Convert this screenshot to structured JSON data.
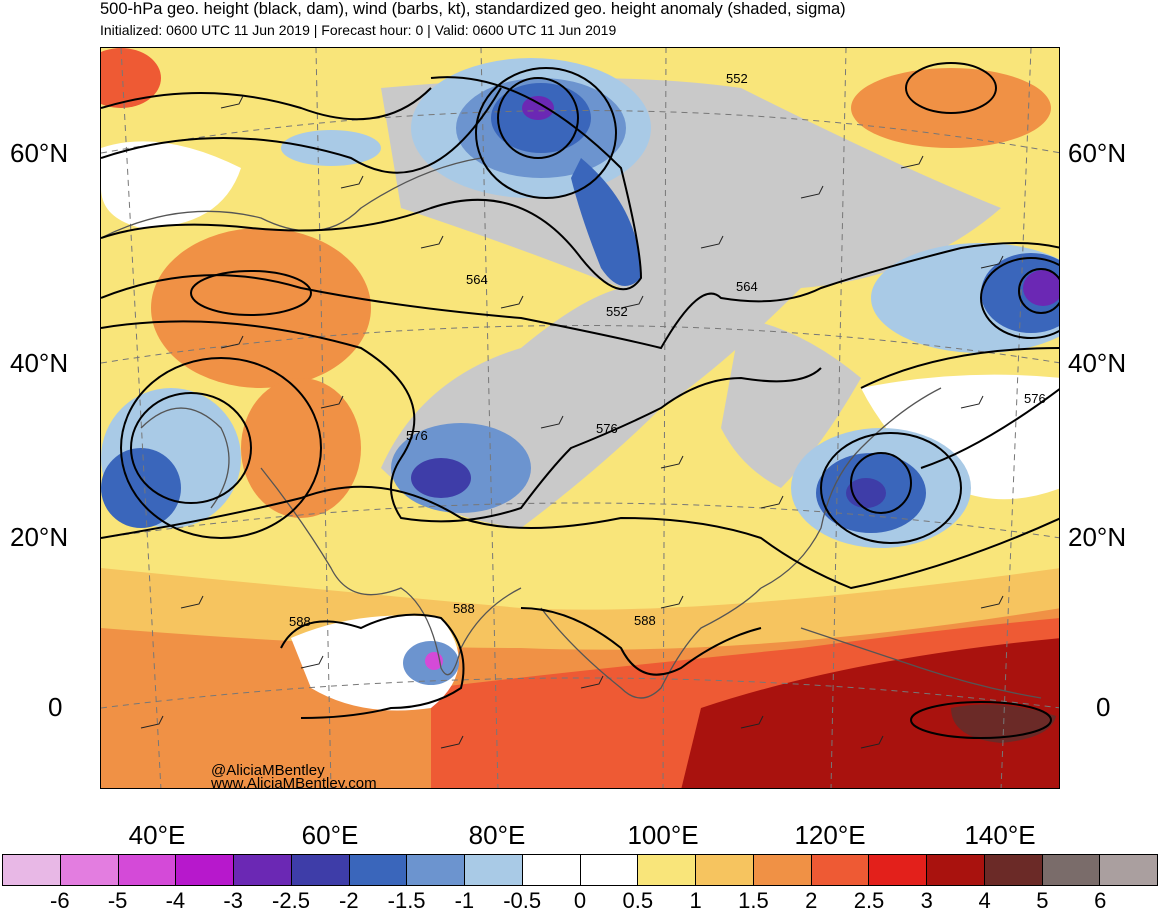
{
  "title": "500-hPa geo. height (black, dam), wind (barbs, kt), standardized geo. height anomaly (shaded, sigma)",
  "subtitle": "Initialized: 0600 UTC 11 Jun 2019 | Forecast hour: 0 | Valid: 0600 UTC 11 Jun 2019",
  "lat_labels": [
    "60°N",
    "40°N",
    "20°N",
    "0"
  ],
  "lon_labels": [
    "40°E",
    "60°E",
    "80°E",
    "100°E",
    "120°E",
    "140°E"
  ],
  "contour_labels": [
    "552",
    "564",
    "552",
    "564",
    "576",
    "576",
    "576",
    "588",
    "588",
    "588"
  ],
  "credit": {
    "handle": "@AliciaMBentley",
    "site": "www.AliciaMBentley.com"
  },
  "colorbar": {
    "labels": [
      "-6",
      "-5",
      "-4",
      "-3",
      "-2.5",
      "-2",
      "-1.5",
      "-1",
      "-0.5",
      "0",
      "0.5",
      "1",
      "1.5",
      "2",
      "2.5",
      "3",
      "4",
      "5",
      "6"
    ],
    "colors": [
      "#e8b8e6",
      "#e37de0",
      "#d44ad8",
      "#b718cc",
      "#6b28b4",
      "#3e3da8",
      "#3a66bb",
      "#6c94cf",
      "#a9cae6",
      "#ffffff",
      "#ffffff",
      "#f9e57a",
      "#f6c45f",
      "#f09145",
      "#ee5a34",
      "#e3201b",
      "#a9120e",
      "#6b2a27",
      "#7a6c6a",
      "#aa9f9f"
    ]
  }
}
